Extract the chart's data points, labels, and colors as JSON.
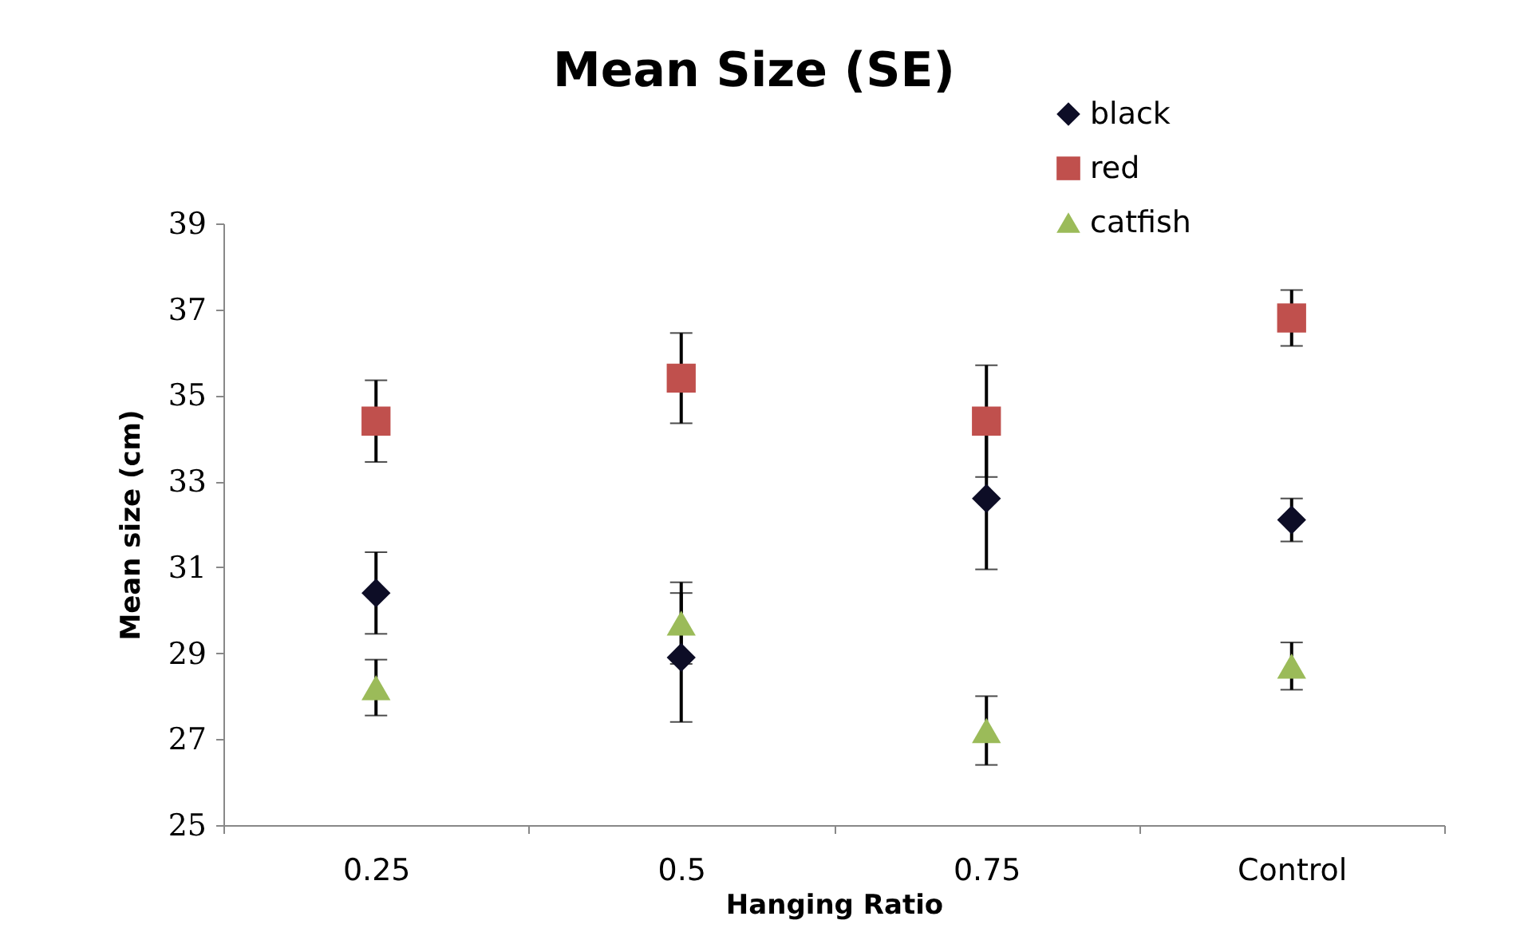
{
  "chart_data": {
    "type": "scatter",
    "title": "Mean Size (SE)",
    "xlabel": "Hanging Ratio",
    "ylabel": "Mean size (cm)",
    "categories": [
      "0.25",
      "0.5",
      "0.75",
      "Control"
    ],
    "series": [
      {
        "name": "black",
        "color": "#0d0d26",
        "marker": "diamond",
        "values": [
          30.4,
          28.9,
          32.6,
          32.1
        ],
        "errors": [
          0.95,
          1.5,
          1.65,
          0.5
        ]
      },
      {
        "name": "red",
        "color": "#c0504d",
        "marker": "square",
        "values": [
          34.4,
          35.4,
          34.4,
          36.8
        ],
        "errors": [
          0.95,
          1.05,
          1.3,
          0.65
        ]
      },
      {
        "name": "catfish",
        "color": "#9bbb59",
        "marker": "triangle",
        "values": [
          28.2,
          29.7,
          27.2,
          28.7
        ],
        "errors": [
          0.65,
          0.95,
          0.8,
          0.55
        ]
      }
    ],
    "ylim": [
      25,
      39
    ],
    "yticks": [
      25,
      27,
      29,
      31,
      33,
      35,
      37,
      39
    ],
    "grid": false,
    "legend": "top right"
  }
}
